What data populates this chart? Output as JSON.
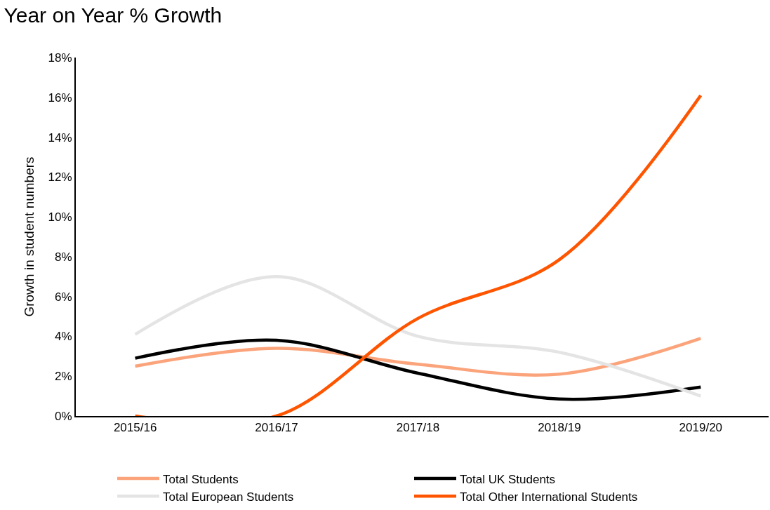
{
  "chart_data": {
    "type": "line",
    "title": "Year on Year % Growth",
    "ylabel": "Growth in student numbers",
    "categories": [
      "2015/16",
      "2016/17",
      "2017/18",
      "2018/19",
      "2019/20"
    ],
    "series": [
      {
        "name": "Total Students",
        "color": "#fba47c",
        "values": [
          2.5,
          3.4,
          2.6,
          2.1,
          3.9
        ]
      },
      {
        "name": "Total UK Students",
        "color": "#000000",
        "values": [
          2.9,
          3.8,
          2.15,
          0.85,
          1.45
        ]
      },
      {
        "name": "Total European Students",
        "color": "#e4e4e4",
        "values": [
          4.1,
          7.0,
          4.0,
          3.2,
          1.0
        ]
      },
      {
        "name": "Total Other International Students",
        "color": "#ff5500",
        "values": [
          0,
          0,
          4.9,
          7.85,
          16.1
        ]
      }
    ],
    "ylim": [
      0,
      18
    ],
    "yticks": [
      {
        "value": 0,
        "label": "0%"
      },
      {
        "value": 2,
        "label": "2%"
      },
      {
        "value": 4,
        "label": "4%"
      },
      {
        "value": 6,
        "label": "6%"
      },
      {
        "value": 8,
        "label": "8%"
      },
      {
        "value": 10,
        "label": "10%"
      },
      {
        "value": 12,
        "label": "12%"
      },
      {
        "value": 14,
        "label": "14%"
      },
      {
        "value": 16,
        "label": "16%"
      },
      {
        "value": 18,
        "label": "18%"
      }
    ],
    "legend": "bottom",
    "marker": "none",
    "line_style": "solid"
  }
}
